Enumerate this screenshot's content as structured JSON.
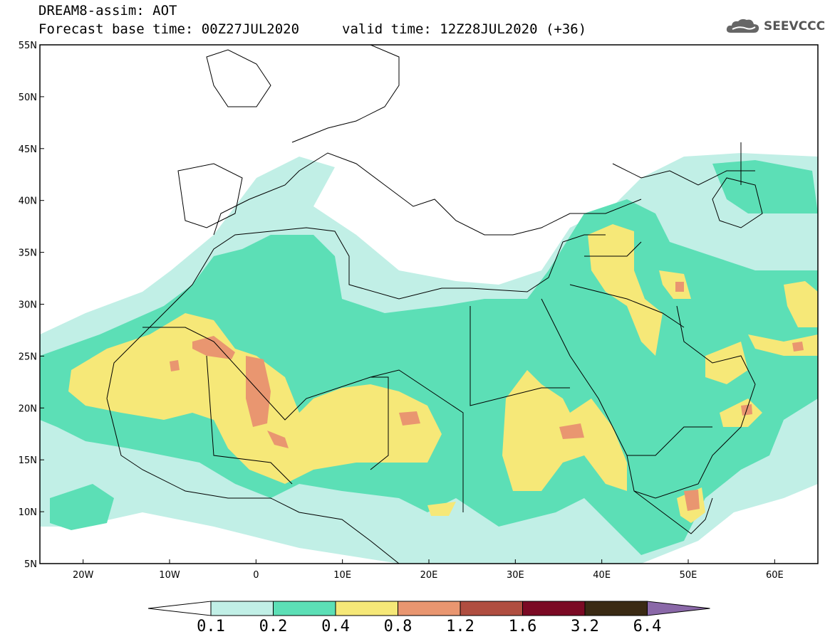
{
  "header": {
    "title": "DREAM8-assim: AOT",
    "base_time": "Forecast base time: 00Z27JUL2020",
    "valid_time": "valid time: 12Z28JUL2020 (+36)",
    "logo_text": "SEEVCCC"
  },
  "axes": {
    "lat_labels": [
      "55N",
      "50N",
      "45N",
      "40N",
      "35N",
      "30N",
      "25N",
      "20N",
      "15N",
      "10N",
      "5N"
    ],
    "lon_labels": [
      "20W",
      "10W",
      "0",
      "10E",
      "20E",
      "30E",
      "40E",
      "50E",
      "60E"
    ]
  },
  "colorbar": {
    "labels": [
      "0.1",
      "0.2",
      "0.4",
      "0.8",
      "1.2",
      "1.6",
      "3.2",
      "6.4"
    ],
    "colors": [
      "#ffffff",
      "#c1efe6",
      "#5cdfb6",
      "#f6e878",
      "#e99670",
      "#b04e40",
      "#7b0a24",
      "#3a2a14",
      "#8a68a8"
    ]
  },
  "map": {
    "projection": "lat-lon",
    "lat_range": [
      5,
      55
    ],
    "lon_range": [
      -25,
      65
    ],
    "field": "AOT"
  }
}
